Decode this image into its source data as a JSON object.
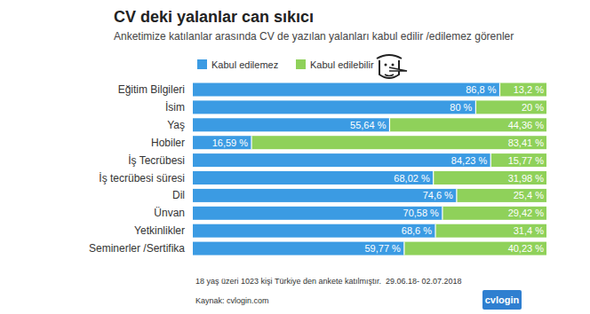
{
  "chart_data": {
    "type": "bar",
    "orientation": "horizontal",
    "stacked": true,
    "data_labels": true,
    "tick_labels": "y",
    "grid": false,
    "legend": "top",
    "title": "CV deki yalanlar can sıkıcı",
    "subtitle": "Anketimize katılanlar arasında CV de yazılan yalanları kabul edilir /edilemez görenler",
    "annotations": [
      "18 yaş üzeri 1023 kişi Türkiye den ankete katılmıştır.  29.06.18- 02.07.2018",
      "Kaynak: cvlogin.com",
      "cvlogin"
    ],
    "categories": [
      "Eğitim Bilgileri",
      "İsim",
      "Yaş",
      "Hobiler",
      "İş Tecrübesi",
      "İş tecrübesi süresi",
      "Dil",
      "Ünvan",
      "Yetkinlikler",
      "Seminerler /Sertifika"
    ],
    "xlim": [
      0,
      100
    ],
    "series": [
      {
        "name": "Kabul edilemez",
        "color": "#3b9be3",
        "values": [
          86.8,
          80,
          55.64,
          16.59,
          84.23,
          68.02,
          74.6,
          70.58,
          68.6,
          59.77
        ],
        "value_labels": [
          "86,8 %",
          "80 %",
          "55,64 %",
          "16,59 %",
          "84,23 %",
          "68,02 %",
          "74,6 %",
          "70,58 %",
          "68,6 %",
          "59,77 %"
        ]
      },
      {
        "name": "Kabul edilebilir",
        "color": "#8fd15a",
        "values": [
          13.2,
          20,
          44.36,
          83.41,
          15.77,
          31.98,
          25.4,
          29.42,
          31.4,
          40.23
        ],
        "value_labels": [
          "13,2 %",
          "20 %",
          "44,36 %",
          "83,41 %",
          "15,77 %",
          "31,98 %",
          "25,4 %",
          "29,42 %",
          "31,4 %",
          "40,23 %"
        ]
      }
    ]
  }
}
